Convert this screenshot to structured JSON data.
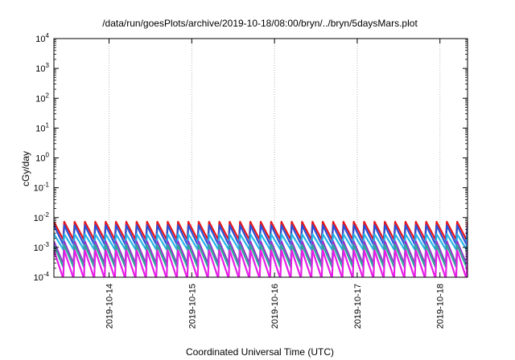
{
  "chart_data": {
    "type": "line",
    "title": "/data/run/goesPlots/archive/2019-10-18/08:00/bryn/../bryn/5daysMars.plot",
    "xlabel": "Coordinated Universal Time (UTC)",
    "ylabel": "cGy/day",
    "y_scale": "log",
    "ylim": [
      0.0001,
      10000
    ],
    "y_ticks": [
      {
        "base": "10",
        "exp": "4",
        "value": 10000
      },
      {
        "base": "10",
        "exp": "3",
        "value": 1000
      },
      {
        "base": "10",
        "exp": "2",
        "value": 100
      },
      {
        "base": "10",
        "exp": "1",
        "value": 10
      },
      {
        "base": "10",
        "exp": "0",
        "value": 1
      },
      {
        "base": "10",
        "exp": "-1",
        "value": 0.1
      },
      {
        "base": "10",
        "exp": "-2",
        "value": 0.01
      },
      {
        "base": "10",
        "exp": "-3",
        "value": 0.001
      },
      {
        "base": "10",
        "exp": "-4",
        "value": 0.0001
      }
    ],
    "xlim": [
      "2019-10-13T08:00",
      "2019-10-18T08:00"
    ],
    "x_tick_labels": [
      "2019-10-14",
      "2019-10-15",
      "2019-10-16",
      "2019-10-17",
      "2019-10-18"
    ],
    "grid": true,
    "sawtooth_period_hours": 3,
    "series": [
      {
        "color": "#e8161c",
        "peak": 0.0072,
        "trough": 0.0018
      },
      {
        "color": "#2a52d6",
        "peak": 0.0055,
        "trough": 0.00125
      },
      {
        "color": "#28b4e6",
        "peak": 0.0028,
        "trough": 0.00085
      },
      {
        "color": "#9933cc",
        "peak": 0.0016,
        "trough": 0.00028
      },
      {
        "color": "#2fa89a",
        "peak": 0.0012,
        "trough": 0.00022
      },
      {
        "color": "#e61ee6",
        "peak": 0.0008,
        "trough": 9e-05
      }
    ]
  }
}
